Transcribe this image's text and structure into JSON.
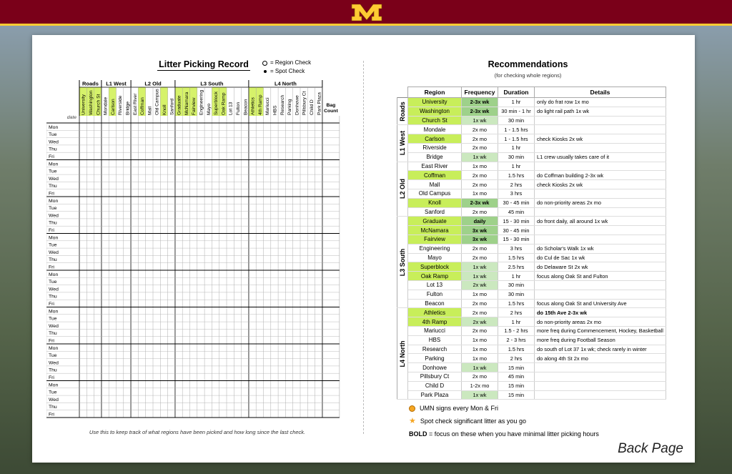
{
  "footer_label": "Back Page",
  "litter_record": {
    "title": "Litter Picking Record",
    "legend": {
      "region_check": "= Region Check",
      "spot_check": "= Spot Check"
    },
    "date_label": "date",
    "bag_count_label": "Bag Count",
    "groups": [
      {
        "name": "Roads",
        "columns": [
          {
            "label": "University",
            "hl": true
          },
          {
            "label": "Washington",
            "hl": true
          },
          {
            "label": "Church St",
            "hl": true
          }
        ]
      },
      {
        "name": "L1 West",
        "columns": [
          {
            "label": "Mondale",
            "hl": false
          },
          {
            "label": "Carlson",
            "hl": true
          },
          {
            "label": "Riverside",
            "hl": false
          },
          {
            "label": "Bridge",
            "hl": false
          }
        ]
      },
      {
        "name": "L2 Old",
        "columns": [
          {
            "label": "East River",
            "hl": false
          },
          {
            "label": "Coffman",
            "hl": true
          },
          {
            "label": "Mall",
            "hl": false
          },
          {
            "label": "Old Campus",
            "hl": false
          },
          {
            "label": "Knoll",
            "hl": true
          },
          {
            "label": "Sanford",
            "hl": false
          }
        ]
      },
      {
        "name": "L3 South",
        "columns": [
          {
            "label": "Graduate",
            "hl": true
          },
          {
            "label": "McNamara",
            "hl": true
          },
          {
            "label": "Fairview",
            "hl": true
          },
          {
            "label": "Engineering",
            "hl": false
          },
          {
            "label": "Mayo",
            "hl": false
          },
          {
            "label": "Superblock",
            "hl": true
          },
          {
            "label": "Oak Ramp",
            "hl": true
          },
          {
            "label": "Lot 13",
            "hl": false
          },
          {
            "label": "Fulton",
            "hl": false
          },
          {
            "label": "Beacon",
            "hl": false
          }
        ]
      },
      {
        "name": "L4 North",
        "columns": [
          {
            "label": "Athletics",
            "hl": true
          },
          {
            "label": "4th Ramp",
            "hl": true
          },
          {
            "label": "Mariucci",
            "hl": false
          },
          {
            "label": "HBS",
            "hl": false
          },
          {
            "label": "Research",
            "hl": false
          },
          {
            "label": "Parking",
            "hl": false
          },
          {
            "label": "Donhowe",
            "hl": false
          },
          {
            "label": "Pillsbury Ct",
            "hl": false
          },
          {
            "label": "Child D",
            "hl": false
          },
          {
            "label": "Park Plaza",
            "hl": false
          }
        ]
      }
    ],
    "days": [
      "Mon",
      "Tue",
      "Wed",
      "Thu",
      "Fri"
    ],
    "weeks": 8,
    "footnote": "Use this to keep track of what regions have been picked and how long since the last check."
  },
  "recommendations": {
    "title": "Recommendations",
    "subtitle": "(for checking whole regions)",
    "headers": {
      "region": "Region",
      "frequency": "Frequency",
      "duration": "Duration",
      "details": "Details"
    },
    "groups": [
      {
        "name": "Roads",
        "rows": [
          {
            "region": "University",
            "rhl": true,
            "frequency": "2-3x wk",
            "fhl": "strong",
            "duration": "1 hr",
            "details": "only do frat row 1x mo",
            "bold": false
          },
          {
            "region": "Washington",
            "rhl": true,
            "frequency": "2-3x wk",
            "fhl": "strong",
            "duration": "30 min - 1 hr",
            "details": "do light rail path 1x wk",
            "bold": false
          },
          {
            "region": "Church St",
            "rhl": true,
            "frequency": "1x wk",
            "fhl": "light",
            "duration": "30 min",
            "details": "",
            "bold": false
          }
        ]
      },
      {
        "name": "L1 West",
        "rows": [
          {
            "region": "Mondale",
            "rhl": false,
            "frequency": "2x mo",
            "fhl": "",
            "duration": "1 - 1.5 hrs",
            "details": "",
            "bold": false
          },
          {
            "region": "Carlson",
            "rhl": true,
            "frequency": "2x mo",
            "fhl": "",
            "duration": "1 - 1.5 hrs",
            "details": "check Kiosks 2x wk",
            "bold": false
          },
          {
            "region": "Riverside",
            "rhl": false,
            "frequency": "2x mo",
            "fhl": "",
            "duration": "1 hr",
            "details": "",
            "bold": false
          },
          {
            "region": "Bridge",
            "rhl": false,
            "frequency": "1x wk",
            "fhl": "light",
            "duration": "30 min",
            "details": "L1 crew usually takes care of it",
            "bold": false
          }
        ]
      },
      {
        "name": "L2 Old",
        "rows": [
          {
            "region": "East River",
            "rhl": false,
            "frequency": "1x mo",
            "fhl": "",
            "duration": "1 hr",
            "details": "",
            "bold": false
          },
          {
            "region": "Coffman",
            "rhl": true,
            "frequency": "2x mo",
            "fhl": "",
            "duration": "1.5 hrs",
            "details": "do Coffman building 2-3x wk",
            "bold": false
          },
          {
            "region": "Mall",
            "rhl": false,
            "frequency": "2x mo",
            "fhl": "",
            "duration": "2 hrs",
            "details": "check Kiosks 2x wk",
            "bold": false
          },
          {
            "region": "Old Campus",
            "rhl": false,
            "frequency": "1x mo",
            "fhl": "",
            "duration": "3 hrs",
            "details": "",
            "bold": false
          },
          {
            "region": "Knoll",
            "rhl": true,
            "frequency": "2-3x wk",
            "fhl": "strong",
            "duration": "30 - 45 min",
            "details": "do non-priority areas 2x mo",
            "bold": false
          },
          {
            "region": "Sanford",
            "rhl": false,
            "frequency": "2x mo",
            "fhl": "",
            "duration": "45 min",
            "details": "",
            "bold": false
          }
        ]
      },
      {
        "name": "L3 South",
        "rows": [
          {
            "region": "Graduate",
            "rhl": true,
            "frequency": "daily",
            "fhl": "strong",
            "duration": "15 - 30 min",
            "details": "do front daily, all around 1x wk",
            "bold": false
          },
          {
            "region": "McNamara",
            "rhl": true,
            "frequency": "3x wk",
            "fhl": "strong",
            "duration": "30 - 45 min",
            "details": "",
            "bold": false
          },
          {
            "region": "Fairview",
            "rhl": true,
            "frequency": "3x wk",
            "fhl": "strong",
            "duration": "15 - 30 min",
            "details": "",
            "bold": false
          },
          {
            "region": "Engineering",
            "rhl": false,
            "frequency": "2x mo",
            "fhl": "",
            "duration": "3 hrs",
            "details": "do Scholar's Walk 1x wk",
            "bold": false
          },
          {
            "region": "Mayo",
            "rhl": false,
            "frequency": "2x mo",
            "fhl": "",
            "duration": "1.5 hrs",
            "details": "do Cul de Sac 1x wk",
            "bold": false
          },
          {
            "region": "Superblock",
            "rhl": true,
            "frequency": "1x wk",
            "fhl": "light",
            "duration": "2.5 hrs",
            "details": "do Delaware St 2x wk",
            "bold": false
          },
          {
            "region": "Oak Ramp",
            "rhl": true,
            "frequency": "1x wk",
            "fhl": "light",
            "duration": "1 hr",
            "details": "focus along Oak St and Fulton",
            "bold": false
          },
          {
            "region": "Lot 13",
            "rhl": false,
            "frequency": "2x wk",
            "fhl": "light",
            "duration": "30 min",
            "details": "",
            "bold": false
          },
          {
            "region": "Fulton",
            "rhl": false,
            "frequency": "1x mo",
            "fhl": "",
            "duration": "30 min",
            "details": "",
            "bold": false
          },
          {
            "region": "Beacon",
            "rhl": false,
            "frequency": "2x mo",
            "fhl": "",
            "duration": "1.5 hrs",
            "details": "focus along Oak St and University Ave",
            "bold": false
          }
        ]
      },
      {
        "name": "L4 North",
        "rows": [
          {
            "region": "Athletics",
            "rhl": true,
            "frequency": "2x mo",
            "fhl": "",
            "duration": "2 hrs",
            "details": "do 15th Ave 2-3x wk",
            "bold": true
          },
          {
            "region": "4th Ramp",
            "rhl": true,
            "frequency": "2x wk",
            "fhl": "light",
            "duration": "1 hr",
            "details": "do non-priority areas 2x mo",
            "bold": false
          },
          {
            "region": "Mariucci",
            "rhl": false,
            "frequency": "2x mo",
            "fhl": "",
            "duration": "1.5 - 2 hrs",
            "details": "more freq during Commencement, Hockey, Basketball",
            "bold": false
          },
          {
            "region": "HBS",
            "rhl": false,
            "frequency": "1x mo",
            "fhl": "",
            "duration": "2 - 3 hrs",
            "details": "more freq during Football Season",
            "bold": false
          },
          {
            "region": "Research",
            "rhl": false,
            "frequency": "1x mo",
            "fhl": "",
            "duration": "1.5 hrs",
            "details": "do south of Lot 37 1x wk; check rarely in winter",
            "bold": false
          },
          {
            "region": "Parking",
            "rhl": false,
            "frequency": "1x mo",
            "fhl": "",
            "duration": "2 hrs",
            "details": "do along 4th St 2x mo",
            "bold": false
          },
          {
            "region": "Donhowe",
            "rhl": false,
            "frequency": "1x wk",
            "fhl": "light",
            "duration": "15 min",
            "details": "",
            "bold": false
          },
          {
            "region": "Pillsbury Ct",
            "rhl": false,
            "frequency": "2x mo",
            "fhl": "",
            "duration": "45 min",
            "details": "",
            "bold": false
          },
          {
            "region": "Child D",
            "rhl": false,
            "frequency": "1-2x mo",
            "fhl": "",
            "duration": "15 min",
            "details": "",
            "bold": false
          },
          {
            "region": "Park Plaza",
            "rhl": false,
            "frequency": "1x wk",
            "fhl": "light",
            "duration": "15 min",
            "details": "",
            "bold": false
          }
        ]
      }
    ],
    "notes": {
      "signs": "UMN signs every Mon & Fri",
      "spot": "Spot check significant litter as you go",
      "bold_term": "BOLD",
      "bold_desc": " = focus on these when you have minimal litter picking hours"
    }
  },
  "colors": {
    "maroon": "#7a0019",
    "gold": "#ffcc33",
    "column_highlight": "#d6f26a",
    "region_highlight": "#c8ee5a",
    "freq_strong": "#9ed18a",
    "freq_light": "#cbe8bf"
  }
}
